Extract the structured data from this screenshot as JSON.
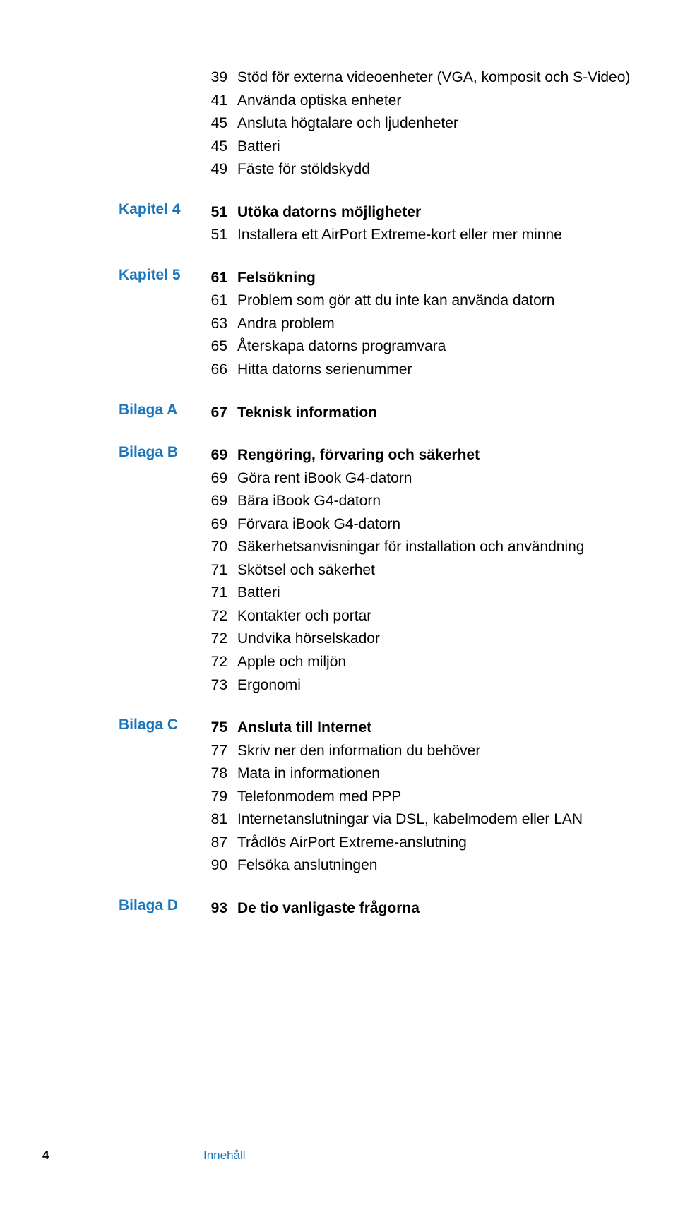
{
  "typography": {
    "body_fontsize_pt": 16,
    "footer_fontsize_pt": 13,
    "line_height": 1.55,
    "bold_weight": 600,
    "regular_weight": 400
  },
  "colors": {
    "accent": "#1b75bb",
    "text": "#000000",
    "background": "#ffffff"
  },
  "intro": [
    {
      "page": "39",
      "title": "Stöd för externa videoenheter (VGA, komposit och S-Video)"
    },
    {
      "page": "41",
      "title": "Använda optiska enheter"
    },
    {
      "page": "45",
      "title": "Ansluta högtalare och ljudenheter"
    },
    {
      "page": "45",
      "title": "Batteri"
    },
    {
      "page": "49",
      "title": "Fäste för stöldskydd"
    }
  ],
  "sections": [
    {
      "label": "Kapitel 4",
      "rows": [
        {
          "page": "51",
          "title": "Utöka datorns möjligheter",
          "bold": true
        },
        {
          "page": "51",
          "title": "Installera ett AirPort Extreme-kort eller mer minne"
        }
      ]
    },
    {
      "label": "Kapitel 5",
      "rows": [
        {
          "page": "61",
          "title": "Felsökning",
          "bold": true
        },
        {
          "page": "61",
          "title": "Problem som gör att du inte kan använda datorn"
        },
        {
          "page": "63",
          "title": "Andra problem"
        },
        {
          "page": "65",
          "title": "Återskapa datorns programvara"
        },
        {
          "page": "66",
          "title": "Hitta datorns serienummer"
        }
      ]
    },
    {
      "label": "Bilaga A",
      "rows": [
        {
          "page": "67",
          "title": "Teknisk information",
          "bold": true
        }
      ]
    },
    {
      "label": "Bilaga B",
      "rows": [
        {
          "page": "69",
          "title": "Rengöring, förvaring och säkerhet",
          "bold": true
        },
        {
          "page": "69",
          "title": "Göra rent iBook G4-datorn"
        },
        {
          "page": "69",
          "title": "Bära iBook G4-datorn"
        },
        {
          "page": "69",
          "title": "Förvara iBook G4-datorn"
        },
        {
          "page": "70",
          "title": "Säkerhetsanvisningar för installation och användning"
        },
        {
          "page": "71",
          "title": "Skötsel och säkerhet"
        },
        {
          "page": "71",
          "title": "Batteri"
        },
        {
          "page": "72",
          "title": "Kontakter och portar"
        },
        {
          "page": "72",
          "title": "Undvika hörselskador"
        },
        {
          "page": "72",
          "title": "Apple och miljön"
        },
        {
          "page": "73",
          "title": "Ergonomi"
        }
      ]
    },
    {
      "label": "Bilaga C",
      "rows": [
        {
          "page": "75",
          "title": "Ansluta till Internet",
          "bold": true
        },
        {
          "page": "77",
          "title": "Skriv ner den information du behöver"
        },
        {
          "page": "78",
          "title": "Mata in informationen"
        },
        {
          "page": "79",
          "title": " Telefonmodem med PPP"
        },
        {
          "page": "81",
          "title": "Internetanslutningar via DSL, kabelmodem eller LAN"
        },
        {
          "page": "87",
          "title": "Trådlös AirPort Extreme-anslutning"
        },
        {
          "page": "90",
          "title": "Felsöka anslutningen"
        }
      ]
    },
    {
      "label": "Bilaga D",
      "rows": [
        {
          "page": "93",
          "title": "De tio vanligaste frågorna",
          "bold": true
        }
      ]
    }
  ],
  "footer": {
    "page_number": "4",
    "title": "Innehåll"
  }
}
